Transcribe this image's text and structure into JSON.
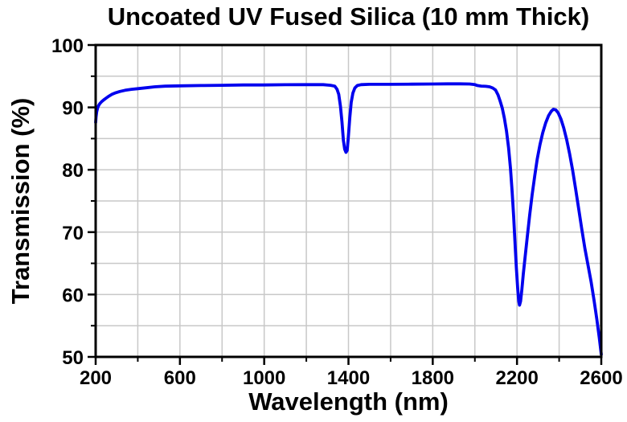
{
  "figure": {
    "background": "#ffffff"
  },
  "chart_data": {
    "type": "line",
    "title": "Uncoated UV Fused Silica (10 mm Thick)",
    "xlabel": "Wavelength (nm)",
    "ylabel": "Transmission (%)",
    "xlim": [
      200,
      2600
    ],
    "ylim": [
      50,
      100
    ],
    "x_major_ticks": [
      200,
      600,
      1000,
      1400,
      1800,
      2200,
      2600
    ],
    "x_minor_ticks": [
      400,
      800,
      1200,
      1600,
      2000,
      2400
    ],
    "y_major_ticks": [
      50,
      60,
      70,
      80,
      90,
      100
    ],
    "y_minor_ticks": [
      55,
      65,
      75,
      85,
      95
    ],
    "grid": true,
    "legend": "none",
    "colors": {
      "line": "#0000ee",
      "grid": "#c8c8c8",
      "axis": "#000000",
      "text": "#000000",
      "background": "#ffffff"
    },
    "series": [
      {
        "name": "Transmission",
        "points": [
          [
            200,
            87.6
          ],
          [
            202,
            88.5
          ],
          [
            205,
            89.3
          ],
          [
            209,
            89.9
          ],
          [
            214,
            90.3
          ],
          [
            220,
            90.6
          ],
          [
            228,
            90.9
          ],
          [
            238,
            91.2
          ],
          [
            250,
            91.5
          ],
          [
            263,
            91.8
          ],
          [
            278,
            92.1
          ],
          [
            295,
            92.35
          ],
          [
            315,
            92.55
          ],
          [
            340,
            92.75
          ],
          [
            370,
            92.9
          ],
          [
            400,
            93.0
          ],
          [
            440,
            93.15
          ],
          [
            480,
            93.3
          ],
          [
            530,
            93.4
          ],
          [
            600,
            93.45
          ],
          [
            700,
            93.5
          ],
          [
            800,
            93.55
          ],
          [
            900,
            93.6
          ],
          [
            1000,
            93.6
          ],
          [
            1100,
            93.63
          ],
          [
            1200,
            93.65
          ],
          [
            1280,
            93.65
          ],
          [
            1315,
            93.55
          ],
          [
            1335,
            93.4
          ],
          [
            1346,
            92.9
          ],
          [
            1354,
            92.1
          ],
          [
            1362,
            90.2
          ],
          [
            1369,
            87.7
          ],
          [
            1376,
            84.7
          ],
          [
            1382,
            83.3
          ],
          [
            1388,
            82.8
          ],
          [
            1394,
            83.1
          ],
          [
            1399,
            85.0
          ],
          [
            1406,
            88.3
          ],
          [
            1413,
            90.8
          ],
          [
            1421,
            92.3
          ],
          [
            1430,
            93.1
          ],
          [
            1442,
            93.5
          ],
          [
            1460,
            93.65
          ],
          [
            1500,
            93.7
          ],
          [
            1600,
            93.7
          ],
          [
            1700,
            93.72
          ],
          [
            1800,
            93.75
          ],
          [
            1870,
            93.78
          ],
          [
            1930,
            93.78
          ],
          [
            1975,
            93.75
          ],
          [
            2000,
            93.65
          ],
          [
            2012,
            93.5
          ],
          [
            2030,
            93.42
          ],
          [
            2052,
            93.38
          ],
          [
            2070,
            93.3
          ],
          [
            2085,
            93.1
          ],
          [
            2098,
            92.8
          ],
          [
            2110,
            92.0
          ],
          [
            2120,
            91.0
          ],
          [
            2130,
            89.9
          ],
          [
            2140,
            88.3
          ],
          [
            2150,
            86.2
          ],
          [
            2160,
            83.5
          ],
          [
            2169,
            80.3
          ],
          [
            2177,
            76.5
          ],
          [
            2184,
            72.5
          ],
          [
            2191,
            68.0
          ],
          [
            2197,
            64.2
          ],
          [
            2203,
            61.0
          ],
          [
            2208,
            58.9
          ],
          [
            2212,
            58.3
          ],
          [
            2217,
            58.9
          ],
          [
            2223,
            60.8
          ],
          [
            2230,
            63.3
          ],
          [
            2239,
            66.2
          ],
          [
            2249,
            69.3
          ],
          [
            2260,
            72.7
          ],
          [
            2272,
            76.0
          ],
          [
            2284,
            79.0
          ],
          [
            2296,
            81.7
          ],
          [
            2309,
            84.0
          ],
          [
            2322,
            85.9
          ],
          [
            2336,
            87.5
          ],
          [
            2350,
            88.7
          ],
          [
            2363,
            89.4
          ],
          [
            2373,
            89.7
          ],
          [
            2384,
            89.6
          ],
          [
            2396,
            89.1
          ],
          [
            2409,
            88.1
          ],
          [
            2422,
            86.7
          ],
          [
            2436,
            84.8
          ],
          [
            2450,
            82.5
          ],
          [
            2464,
            79.9
          ],
          [
            2478,
            77.0
          ],
          [
            2492,
            73.9
          ],
          [
            2507,
            70.6
          ],
          [
            2522,
            67.4
          ],
          [
            2537,
            64.7
          ],
          [
            2552,
            62.0
          ],
          [
            2566,
            59.0
          ],
          [
            2579,
            56.0
          ],
          [
            2590,
            53.2
          ],
          [
            2600,
            50.4
          ]
        ]
      }
    ]
  }
}
